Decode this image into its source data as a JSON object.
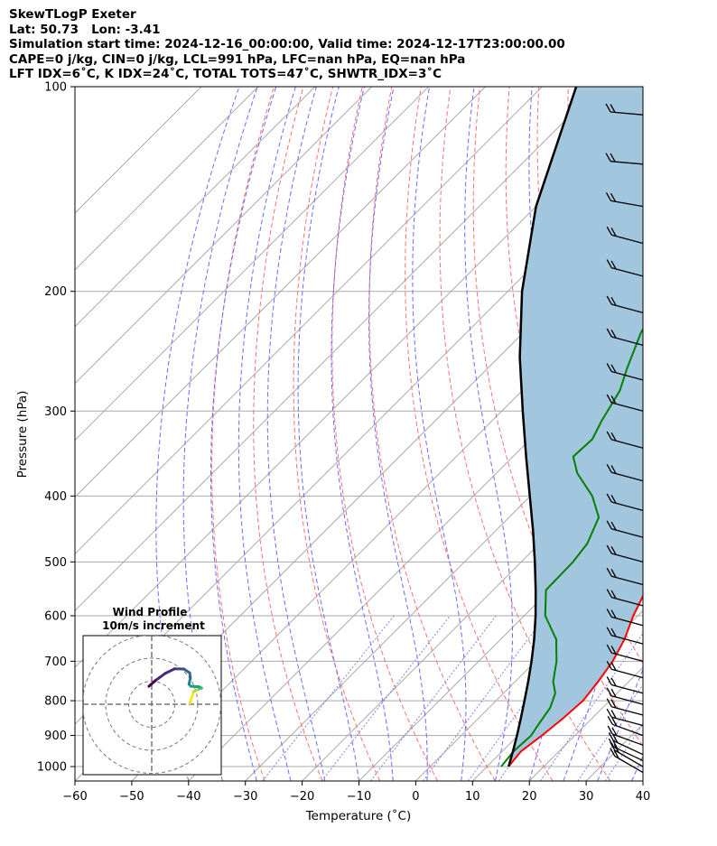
{
  "header": {
    "line1": "SkewTLogP Exeter",
    "line2": "Lat: 50.73   Lon: -3.41",
    "line3": "Simulation start time: 2024-12-16_00:00:00, Valid time: 2024-12-17T23:00:00.00",
    "line4": "CAPE=0 j/kg, CIN=0 j/kg, LCL=991 hPa, LFC=nan hPa, EQ=nan hPa",
    "line5": "LFT IDX=6˚C, K IDX=24˚C, TOTAL TOTS=47˚C, SHWTR_IDX=3˚C"
  },
  "chart_data": {
    "type": "skew-t",
    "xlabel": "Temperature (˚C)",
    "ylabel": "Pressure (hPa)",
    "xlim": [
      -60,
      40
    ],
    "ylim": [
      1050,
      100
    ],
    "y_scale": "log",
    "x_ticks": [
      -60,
      -50,
      -40,
      -30,
      -20,
      -10,
      0,
      10,
      20,
      30,
      40
    ],
    "x_tick_labels": [
      "−60",
      "−50",
      "−40",
      "−30",
      "−20",
      "−10",
      "0",
      "10",
      "20",
      "30",
      "40"
    ],
    "y_ticks": [
      1000,
      900,
      800,
      700,
      600,
      500,
      400,
      300,
      200,
      100
    ],
    "y_tick_labels": [
      "1000",
      "900",
      "800",
      "700",
      "600",
      "500",
      "400",
      "300",
      "200",
      "100"
    ],
    "temperature": {
      "color": "#ff0000",
      "points": [
        [
          1000,
          13.8
        ],
        [
          950,
          13.3
        ],
        [
          900,
          14.2
        ],
        [
          850,
          14.9
        ],
        [
          800,
          15.3
        ],
        [
          750,
          14.6
        ],
        [
          700,
          13.6
        ],
        [
          650,
          11.8
        ],
        [
          600,
          9.2
        ],
        [
          550,
          6.9
        ],
        [
          500,
          3.7
        ],
        [
          450,
          0.4
        ],
        [
          400,
          -3.3
        ],
        [
          350,
          -6.7
        ],
        [
          300,
          -11.7
        ],
        [
          275,
          -15.4
        ],
        [
          255,
          -18.3
        ],
        [
          240,
          -19.5
        ],
        [
          230,
          -20.3
        ],
        [
          220,
          -20.7
        ],
        [
          210,
          -20.5
        ],
        [
          200,
          -19.9
        ],
        [
          180,
          -17.3
        ],
        [
          160,
          -13.0
        ],
        [
          140,
          -7.5
        ],
        [
          120,
          -0.8
        ],
        [
          100,
          6.3
        ]
      ]
    },
    "dewpoint": {
      "color": "#008000",
      "points": [
        [
          1000,
          12.5
        ],
        [
          950,
          12.0
        ],
        [
          900,
          12.3
        ],
        [
          870,
          11.7
        ],
        [
          820,
          10.8
        ],
        [
          780,
          9.1
        ],
        [
          750,
          6.7
        ],
        [
          700,
          3.7
        ],
        [
          650,
          -0.2
        ],
        [
          600,
          -6.3
        ],
        [
          550,
          -10.7
        ],
        [
          500,
          -10.9
        ],
        [
          470,
          -11.6
        ],
        [
          430,
          -14.2
        ],
        [
          400,
          -19.1
        ],
        [
          370,
          -25.8
        ],
        [
          350,
          -29.4
        ],
        [
          330,
          -29.1
        ],
        [
          310,
          -30.7
        ],
        [
          280,
          -32.8
        ],
        [
          260,
          -35.4
        ],
        [
          230,
          -39.3
        ],
        [
          210,
          -41.3
        ],
        [
          190,
          -40.6
        ],
        [
          170,
          -40.9
        ],
        [
          155,
          -42.9
        ],
        [
          145,
          -44.3
        ],
        [
          130,
          -45.7
        ],
        [
          120,
          -46.2
        ],
        [
          110,
          -46.8
        ],
        [
          100,
          -47.0
        ]
      ]
    },
    "parcel": {
      "color": "#000000",
      "points": [
        [
          1000,
          13.8
        ],
        [
          950,
          11.9
        ],
        [
          900,
          9.8
        ],
        [
          850,
          7.5
        ],
        [
          800,
          5.0
        ],
        [
          750,
          2.3
        ],
        [
          700,
          -0.7
        ],
        [
          650,
          -4.1
        ],
        [
          600,
          -8.0
        ],
        [
          550,
          -12.5
        ],
        [
          500,
          -17.6
        ],
        [
          450,
          -23.4
        ],
        [
          400,
          -30.1
        ],
        [
          350,
          -37.7
        ],
        [
          300,
          -46.3
        ],
        [
          250,
          -56.3
        ],
        [
          200,
          -67.5
        ],
        [
          150,
          -80.0
        ],
        [
          100,
          -94.0
        ]
      ]
    },
    "shaded_area_color": "#a3c6df",
    "dry_adiabat_color": "#ff6f6f",
    "moist_adiabat_color": "#6a6aff",
    "mixing_ratio_color": "#7f7fff",
    "isotherm_color": "#aaaaaa",
    "purple_line_color": "#9a4dc7",
    "wind_barbs": {
      "pressures": [
        1020,
        1000,
        980,
        960,
        930,
        900,
        870,
        840,
        810,
        780,
        740,
        700,
        660,
        620,
        580,
        540,
        500,
        460,
        420,
        380,
        340,
        300,
        270,
        240,
        215,
        190,
        170,
        150,
        130,
        110
      ],
      "speeds_kt": [
        20,
        20,
        20,
        20,
        20,
        20,
        20,
        20,
        20,
        20,
        20,
        20,
        20,
        20,
        20,
        20,
        20,
        20,
        20,
        20,
        20,
        20,
        20,
        20,
        20,
        20,
        20,
        20,
        20,
        20
      ],
      "directions_deg": [
        240,
        240,
        245,
        245,
        250,
        250,
        255,
        255,
        255,
        255,
        255,
        255,
        255,
        255,
        255,
        255,
        255,
        255,
        255,
        255,
        255,
        255,
        255,
        255,
        255,
        255,
        255,
        260,
        265,
        265
      ]
    },
    "hodograph": {
      "title": "Wind Profile",
      "subtitle": "10m/s increment",
      "rings": [
        10,
        20,
        30
      ],
      "points": [
        [
          16.5,
          0.5
        ],
        [
          17.4,
          3.0
        ],
        [
          18.2,
          5.4
        ],
        [
          20.5,
          6.6
        ],
        [
          21.0,
          6.8
        ],
        [
          21.7,
          7.0
        ],
        [
          20.5,
          7.6
        ],
        [
          17.0,
          7.8
        ],
        [
          16.2,
          8.7
        ],
        [
          16.8,
          11.5
        ],
        [
          16.5,
          13.6
        ],
        [
          14.0,
          15.3
        ],
        [
          10.0,
          15.4
        ],
        [
          6.0,
          13.5
        ],
        [
          1.5,
          10.2
        ],
        [
          -1.2,
          7.8
        ]
      ]
    }
  }
}
